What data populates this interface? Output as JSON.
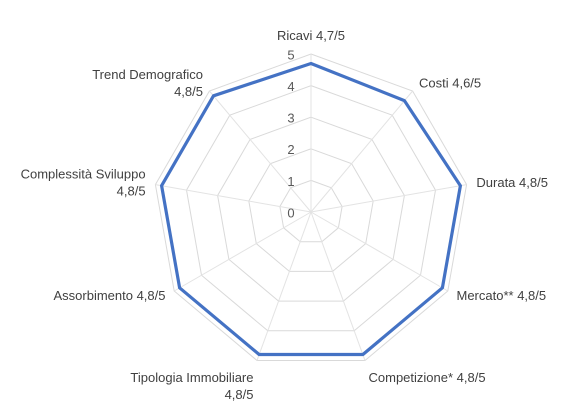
{
  "chart_data": {
    "type": "radar",
    "title": "",
    "rlim": [
      0,
      5
    ],
    "ticks": [
      "0",
      "1",
      "2",
      "3",
      "4",
      "5"
    ],
    "categories": [
      "Ricavi 4,7/5",
      "Costi 4,6/5",
      "Durata 4,8/5",
      "Mercato** 4,8/5",
      "Competizione* 4,8/5",
      "Tipologia Immobiliare\n4,8/5",
      "Assorbimento 4,8/5",
      "Complessità Sviluppo\n4,8/5",
      "Trend Demografico\n4,8/5"
    ],
    "series": [
      {
        "values": [
          4.7,
          4.6,
          4.8,
          4.8,
          4.8,
          4.8,
          4.8,
          4.8,
          4.8
        ],
        "color": "#4472c4"
      }
    ],
    "grid": true,
    "legend": "none"
  }
}
